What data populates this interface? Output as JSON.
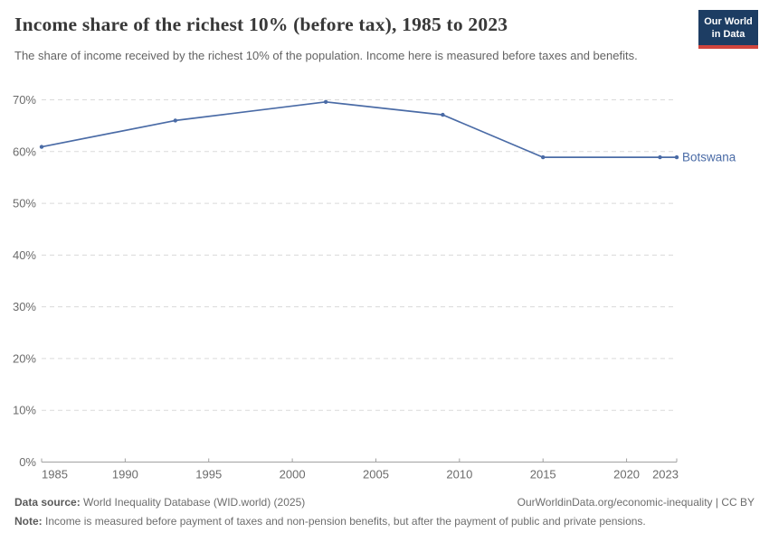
{
  "header": {
    "title": "Income share of the richest 10% (before tax), 1985 to 2023",
    "subtitle": "The share of income received by the richest 10% of the population. Income here is measured before taxes and benefits.",
    "logo_line1": "Our World",
    "logo_line2": "in Data"
  },
  "chart_data": {
    "type": "line",
    "title": "Income share of the richest 10% (before tax), 1985 to 2023",
    "x": [
      1985,
      1993,
      2002,
      2009,
      2015,
      2022,
      2023
    ],
    "series": [
      {
        "name": "Botswana",
        "color": "#4a6ba6",
        "values": [
          60.9,
          66,
          69.6,
          67.1,
          58.9,
          58.9,
          58.9
        ]
      }
    ],
    "end_label": "Botswana",
    "xlabel": "",
    "ylabel": "",
    "xlim": [
      1985,
      2023
    ],
    "ylim": [
      0,
      70
    ],
    "x_ticks": [
      1985,
      1990,
      1995,
      2000,
      2005,
      2010,
      2015,
      2020,
      2023
    ],
    "y_ticks": [
      0,
      10,
      20,
      30,
      40,
      50,
      60,
      70
    ],
    "y_tick_suffix": "%",
    "grid": "horizontal-dashed",
    "legend_position": "end-of-line"
  },
  "footer": {
    "data_source_label": "Data source:",
    "data_source_text": " World Inequality Database (WID.world) (2025)",
    "citation": "OurWorldinData.org/economic-inequality | CC BY",
    "note_label": "Note:",
    "note_text": " Income is measured before payment of taxes and non-pension benefits, but after the payment of public and private pensions."
  },
  "colors": {
    "line": "#4a6ba6",
    "grid": "#dadada",
    "axis": "#a1a1a1",
    "tick_label": "#6b6b6b",
    "logo_bg": "#1d3d63",
    "logo_red": "#d0453e"
  }
}
